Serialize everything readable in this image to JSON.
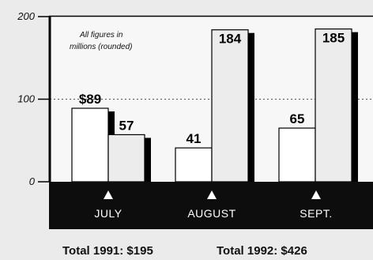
{
  "chart_data": {
    "type": "bar",
    "categories": [
      "JULY",
      "AUGUST",
      "SEPT."
    ],
    "series": [
      {
        "values": [
          89,
          41,
          65
        ],
        "labels": [
          "$89",
          "41",
          "65"
        ],
        "color": "#ffffff"
      },
      {
        "values": [
          57,
          184,
          185
        ],
        "labels": [
          "57",
          "184",
          "185"
        ],
        "color": "#ececec"
      }
    ],
    "ylim": [
      0,
      200
    ],
    "yticks": [
      {
        "value": 200,
        "label": "200"
      },
      {
        "value": 100,
        "label": "100"
      },
      {
        "value": 0,
        "label": "0"
      }
    ],
    "grid": true,
    "annotation": [
      "All figures in",
      "millions (rounded)"
    ],
    "totals": [
      "Total 1991: $195",
      "Total 1992: $426"
    ]
  }
}
